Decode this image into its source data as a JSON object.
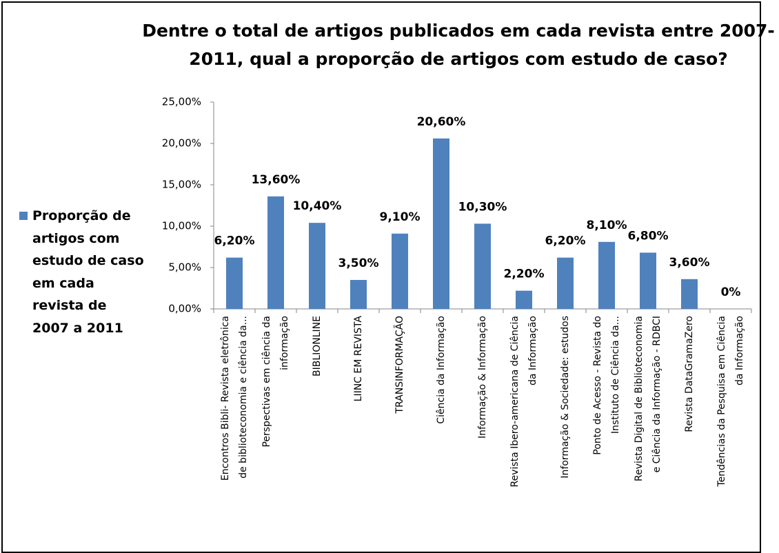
{
  "chart_data": {
    "type": "bar",
    "title": "Dentre o total de artigos publicados em cada revista entre 2007-\n2011, qual a proporção de artigos com estudo de caso?",
    "categories": [
      "Encontros Bibli- Revista eletrônica\nde biblioteconomia e ciência da...",
      "Perspectivas em ciência da\ninformação",
      "BIBLIONLINE",
      "LIINC EM REVISTA",
      "TRANSINFORMAÇÃO",
      "Ciência da Informação",
      "Informação & Informação",
      "Revista Ibero-americana de Ciência\nda Informação",
      "Informação & Sociedade: estudos",
      "Ponto de Acesso - Revista do\nInstituto de Ciência da...",
      "Revista Digital de Biblioteconomia\ne Ciência da Informação - RDBCI",
      "Revista DataGramaZero",
      "Tendências da Pesquisa em Ciência\nda Informação"
    ],
    "series": [
      {
        "name": "Proporção de artigos com estudo de caso em cada revista de 2007 a 2011",
        "color": "#4f81bd",
        "values": [
          6.2,
          13.6,
          10.4,
          3.5,
          9.1,
          20.6,
          10.3,
          2.2,
          6.2,
          8.1,
          6.8,
          3.6,
          0
        ],
        "value_labels": [
          "6,20%",
          "13,60%",
          "10,40%",
          "3,50%",
          "9,10%",
          "20,60%",
          "10,30%",
          "2,20%",
          "6,20%",
          "8,10%",
          "6,80%",
          "3,60%",
          "0%"
        ]
      }
    ],
    "ylim": [
      0,
      25
    ],
    "yticks": [
      {
        "value": 0,
        "label": "0,00%"
      },
      {
        "value": 5,
        "label": "5,00%"
      },
      {
        "value": 10,
        "label": "10,00%"
      },
      {
        "value": 15,
        "label": "15,00%"
      },
      {
        "value": 20,
        "label": "20,00%"
      },
      {
        "value": 25,
        "label": "25,00%"
      }
    ],
    "legend": "left"
  }
}
